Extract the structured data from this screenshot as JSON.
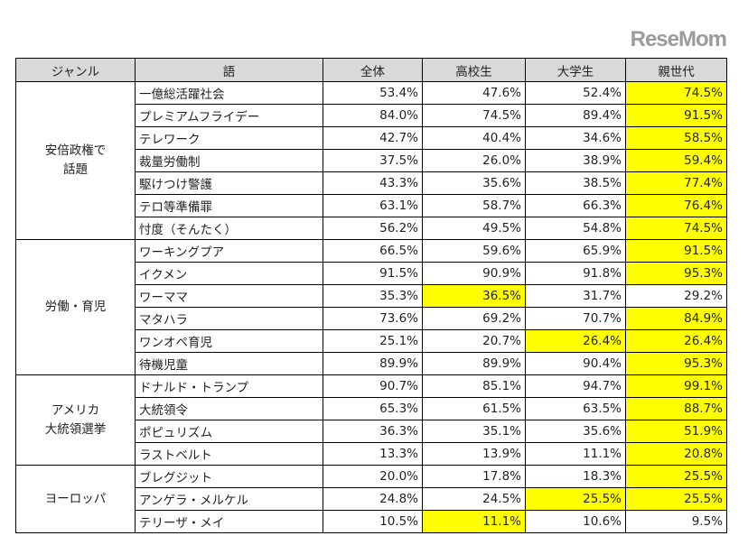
{
  "colors": {
    "header_bg": "#d9d9d9",
    "highlight": "#ffff00"
  },
  "headers": [
    "ジャンル",
    "語",
    "全体",
    "高校生",
    "大学生",
    "親世代"
  ],
  "groups": [
    {
      "genre": "安倍政権で\n話題",
      "rows": [
        {
          "term": "一億総活躍社会",
          "values": [
            "53.4%",
            "47.6%",
            "52.4%",
            "74.5%"
          ],
          "highlight": [
            false,
            false,
            false,
            true
          ]
        },
        {
          "term": "プレミアムフライデー",
          "values": [
            "84.0%",
            "74.5%",
            "89.4%",
            "91.5%"
          ],
          "highlight": [
            false,
            false,
            false,
            true
          ]
        },
        {
          "term": "テレワーク",
          "values": [
            "42.7%",
            "40.4%",
            "34.6%",
            "58.5%"
          ],
          "highlight": [
            false,
            false,
            false,
            true
          ]
        },
        {
          "term": "裁量労働制",
          "values": [
            "37.5%",
            "26.0%",
            "38.9%",
            "59.4%"
          ],
          "highlight": [
            false,
            false,
            false,
            true
          ]
        },
        {
          "term": "駆けつけ警護",
          "values": [
            "43.3%",
            "35.6%",
            "38.5%",
            "77.4%"
          ],
          "highlight": [
            false,
            false,
            false,
            true
          ]
        },
        {
          "term": "テロ等準備罪",
          "values": [
            "63.1%",
            "58.7%",
            "66.3%",
            "76.4%"
          ],
          "highlight": [
            false,
            false,
            false,
            true
          ]
        },
        {
          "term": "忖度（そんたく）",
          "values": [
            "56.2%",
            "49.5%",
            "54.8%",
            "74.5%"
          ],
          "highlight": [
            false,
            false,
            false,
            true
          ]
        }
      ]
    },
    {
      "genre": "労働・育児",
      "rows": [
        {
          "term": "ワーキングプア",
          "values": [
            "66.5%",
            "59.6%",
            "65.9%",
            "91.5%"
          ],
          "highlight": [
            false,
            false,
            false,
            true
          ]
        },
        {
          "term": "イクメン",
          "values": [
            "91.5%",
            "90.9%",
            "91.8%",
            "95.3%"
          ],
          "highlight": [
            false,
            false,
            false,
            true
          ]
        },
        {
          "term": "ワーママ",
          "values": [
            "35.3%",
            "36.5%",
            "31.7%",
            "29.2%"
          ],
          "highlight": [
            false,
            true,
            false,
            false
          ]
        },
        {
          "term": "マタハラ",
          "values": [
            "73.6%",
            "69.2%",
            "70.7%",
            "84.9%"
          ],
          "highlight": [
            false,
            false,
            false,
            true
          ]
        },
        {
          "term": "ワンオペ育児",
          "values": [
            "25.1%",
            "20.7%",
            "26.4%",
            "26.4%"
          ],
          "highlight": [
            false,
            false,
            true,
            true
          ]
        },
        {
          "term": "待機児童",
          "values": [
            "89.9%",
            "89.9%",
            "90.4%",
            "95.3%"
          ],
          "highlight": [
            false,
            false,
            false,
            true
          ]
        }
      ]
    },
    {
      "genre": "アメリカ\n大統領選挙",
      "rows": [
        {
          "term": "ドナルド・トランプ",
          "values": [
            "90.7%",
            "85.1%",
            "94.7%",
            "99.1%"
          ],
          "highlight": [
            false,
            false,
            false,
            true
          ]
        },
        {
          "term": "大統領令",
          "values": [
            "65.3%",
            "61.5%",
            "63.5%",
            "88.7%"
          ],
          "highlight": [
            false,
            false,
            false,
            true
          ]
        },
        {
          "term": "ポピュリズム",
          "values": [
            "36.3%",
            "35.1%",
            "35.6%",
            "51.9%"
          ],
          "highlight": [
            false,
            false,
            false,
            true
          ]
        },
        {
          "term": "ラストベルト",
          "values": [
            "13.3%",
            "13.9%",
            "11.1%",
            "20.8%"
          ],
          "highlight": [
            false,
            false,
            false,
            true
          ]
        }
      ]
    },
    {
      "genre": "ヨーロッパ",
      "rows": [
        {
          "term": "ブレグジット",
          "values": [
            "20.0%",
            "17.8%",
            "18.3%",
            "25.5%"
          ],
          "highlight": [
            false,
            false,
            false,
            true
          ]
        },
        {
          "term": "アンゲラ・メルケル",
          "values": [
            "24.8%",
            "24.5%",
            "25.5%",
            "25.5%"
          ],
          "highlight": [
            false,
            false,
            true,
            true
          ]
        },
        {
          "term": "テリーザ・メイ",
          "values": [
            "10.5%",
            "11.1%",
            "10.6%",
            "9.5%"
          ],
          "highlight": [
            false,
            true,
            false,
            false
          ]
        }
      ]
    }
  ],
  "watermark": "ReseMom"
}
